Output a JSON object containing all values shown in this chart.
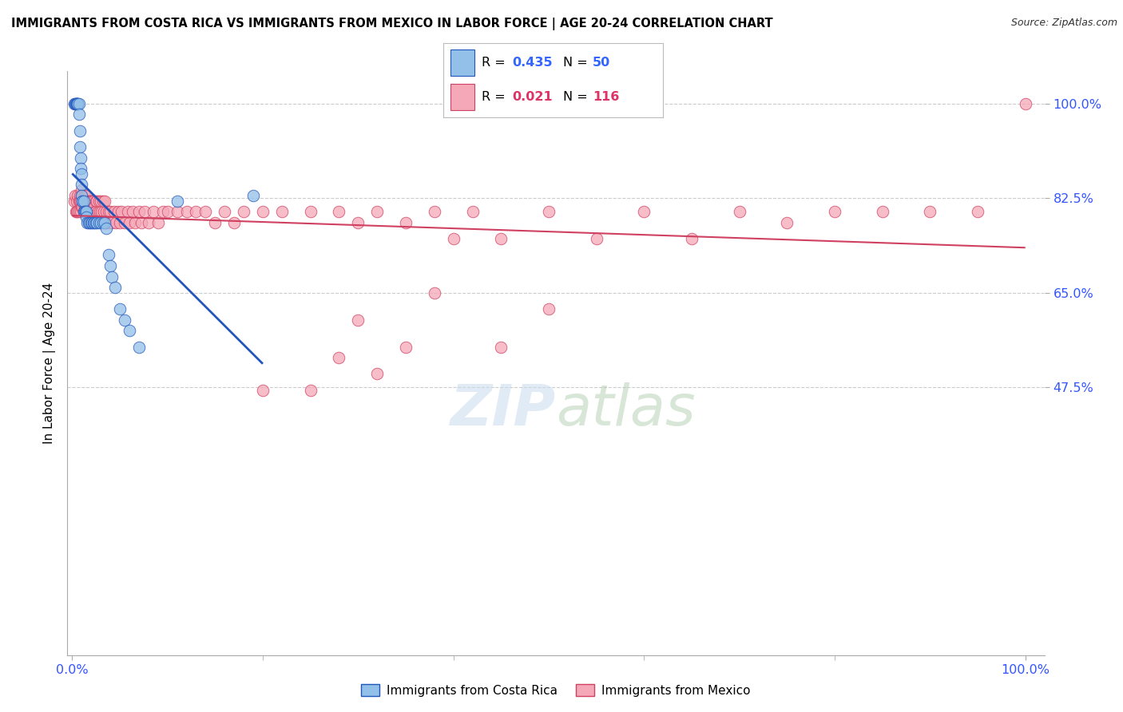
{
  "title": "IMMIGRANTS FROM COSTA RICA VS IMMIGRANTS FROM MEXICO IN LABOR FORCE | AGE 20-24 CORRELATION CHART",
  "source": "Source: ZipAtlas.com",
  "ylabel": "In Labor Force | Age 20-24",
  "xlim": [
    0,
    1.0
  ],
  "ylim": [
    0,
    1.0
  ],
  "ytick_labels": [
    "47.5%",
    "65.0%",
    "82.5%",
    "100.0%"
  ],
  "ytick_values": [
    0.475,
    0.65,
    0.825,
    1.0
  ],
  "xtick_labels": [
    "0.0%",
    "100.0%"
  ],
  "xtick_values": [
    0.0,
    1.0
  ],
  "costa_rica_R": 0.435,
  "costa_rica_N": 50,
  "mexico_R": 0.021,
  "mexico_N": 116,
  "costa_rica_color": "#92C0E8",
  "mexico_color": "#F5A8B8",
  "trendline_costa_rica_color": "#2255BB",
  "trendline_mexico_color": "#D04060",
  "watermark_color": "#C8DCF0",
  "title_fontsize": 10.5,
  "tick_label_color": "#3355FF",
  "legend_R_blue_color": "#3366FF",
  "legend_R_pink_color": "#DD3366",
  "legend_N_blue_color": "#3366FF",
  "legend_N_pink_color": "#DD3366",
  "cr_x": [
    0.002,
    0.003,
    0.004,
    0.004,
    0.005,
    0.005,
    0.006,
    0.006,
    0.006,
    0.007,
    0.007,
    0.008,
    0.008,
    0.009,
    0.009,
    0.01,
    0.01,
    0.01,
    0.011,
    0.011,
    0.012,
    0.012,
    0.013,
    0.014,
    0.015,
    0.015,
    0.016,
    0.017,
    0.018,
    0.02,
    0.021,
    0.022,
    0.023,
    0.025,
    0.026,
    0.028,
    0.03,
    0.032,
    0.034,
    0.036,
    0.038,
    0.04,
    0.042,
    0.045,
    0.05,
    0.055,
    0.06,
    0.07,
    0.11,
    0.19
  ],
  "cr_y": [
    1.0,
    1.0,
    1.0,
    1.0,
    1.0,
    1.0,
    1.0,
    1.0,
    1.0,
    1.0,
    0.98,
    0.95,
    0.92,
    0.9,
    0.88,
    0.87,
    0.85,
    0.83,
    0.82,
    0.82,
    0.82,
    0.8,
    0.8,
    0.8,
    0.8,
    0.79,
    0.78,
    0.78,
    0.78,
    0.78,
    0.78,
    0.78,
    0.78,
    0.78,
    0.78,
    0.78,
    0.78,
    0.78,
    0.78,
    0.77,
    0.72,
    0.7,
    0.68,
    0.66,
    0.62,
    0.6,
    0.58,
    0.55,
    0.82,
    0.83
  ],
  "mx_x": [
    0.002,
    0.003,
    0.004,
    0.005,
    0.005,
    0.006,
    0.006,
    0.007,
    0.007,
    0.008,
    0.008,
    0.009,
    0.009,
    0.01,
    0.01,
    0.01,
    0.011,
    0.011,
    0.012,
    0.012,
    0.013,
    0.013,
    0.014,
    0.014,
    0.015,
    0.015,
    0.016,
    0.016,
    0.017,
    0.017,
    0.018,
    0.018,
    0.019,
    0.019,
    0.02,
    0.02,
    0.021,
    0.022,
    0.022,
    0.023,
    0.024,
    0.025,
    0.025,
    0.026,
    0.027,
    0.028,
    0.029,
    0.03,
    0.031,
    0.032,
    0.033,
    0.034,
    0.035,
    0.036,
    0.037,
    0.038,
    0.039,
    0.04,
    0.042,
    0.044,
    0.046,
    0.048,
    0.05,
    0.052,
    0.055,
    0.058,
    0.06,
    0.063,
    0.066,
    0.07,
    0.073,
    0.076,
    0.08,
    0.085,
    0.09,
    0.095,
    0.1,
    0.11,
    0.12,
    0.13,
    0.14,
    0.15,
    0.16,
    0.17,
    0.18,
    0.2,
    0.22,
    0.25,
    0.28,
    0.3,
    0.32,
    0.35,
    0.38,
    0.4,
    0.42,
    0.45,
    0.5,
    0.55,
    0.6,
    0.65,
    0.7,
    0.75,
    0.8,
    0.85,
    0.9,
    0.95,
    1.0,
    0.38,
    0.5,
    0.45,
    0.3,
    0.35,
    0.28,
    0.32,
    0.25,
    0.2
  ],
  "mx_y": [
    0.82,
    0.83,
    0.8,
    0.82,
    0.8,
    0.83,
    0.8,
    0.82,
    0.8,
    0.83,
    0.82,
    0.8,
    0.82,
    0.84,
    0.83,
    0.81,
    0.83,
    0.81,
    0.82,
    0.8,
    0.83,
    0.81,
    0.82,
    0.8,
    0.83,
    0.81,
    0.82,
    0.8,
    0.82,
    0.8,
    0.82,
    0.8,
    0.82,
    0.8,
    0.82,
    0.8,
    0.82,
    0.8,
    0.82,
    0.81,
    0.8,
    0.82,
    0.8,
    0.82,
    0.8,
    0.82,
    0.8,
    0.82,
    0.8,
    0.82,
    0.8,
    0.82,
    0.78,
    0.8,
    0.78,
    0.8,
    0.78,
    0.8,
    0.78,
    0.8,
    0.78,
    0.8,
    0.78,
    0.8,
    0.78,
    0.8,
    0.78,
    0.8,
    0.78,
    0.8,
    0.78,
    0.8,
    0.78,
    0.8,
    0.78,
    0.8,
    0.8,
    0.8,
    0.8,
    0.8,
    0.8,
    0.78,
    0.8,
    0.78,
    0.8,
    0.8,
    0.8,
    0.8,
    0.8,
    0.78,
    0.8,
    0.78,
    0.8,
    0.75,
    0.8,
    0.75,
    0.8,
    0.75,
    0.8,
    0.75,
    0.8,
    0.78,
    0.8,
    0.8,
    0.8,
    0.8,
    1.0,
    0.65,
    0.62,
    0.55,
    0.6,
    0.55,
    0.53,
    0.5,
    0.47,
    0.47
  ]
}
